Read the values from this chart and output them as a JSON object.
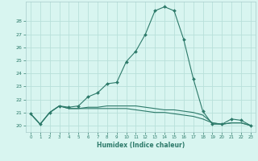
{
  "xlabel": "Humidex (Indice chaleur)",
  "bg_color": "#d8f5f0",
  "line_color": "#2d7a6a",
  "grid_color": "#b8e0da",
  "x_values": [
    0,
    1,
    2,
    3,
    4,
    5,
    6,
    7,
    8,
    9,
    10,
    11,
    12,
    13,
    14,
    15,
    16,
    17,
    18,
    19,
    20,
    21,
    22,
    23
  ],
  "line1": [
    20.9,
    20.1,
    21.0,
    21.5,
    21.4,
    21.5,
    22.2,
    22.5,
    23.2,
    23.3,
    24.9,
    25.7,
    27.0,
    28.8,
    29.1,
    28.8,
    26.6,
    23.6,
    21.1,
    20.1,
    20.1,
    20.5,
    20.4,
    20.0
  ],
  "line2": [
    20.9,
    20.1,
    21.0,
    21.5,
    21.3,
    21.3,
    21.4,
    21.4,
    21.5,
    21.5,
    21.5,
    21.5,
    21.4,
    21.3,
    21.2,
    21.2,
    21.1,
    21.0,
    20.8,
    20.2,
    20.1,
    20.2,
    20.2,
    20.0
  ],
  "line3": [
    20.9,
    20.1,
    21.0,
    21.5,
    21.3,
    21.3,
    21.3,
    21.3,
    21.3,
    21.3,
    21.3,
    21.2,
    21.1,
    21.0,
    21.0,
    20.9,
    20.8,
    20.7,
    20.5,
    20.2,
    20.1,
    20.2,
    20.2,
    20.0
  ],
  "ylim": [
    19.5,
    29.5
  ],
  "yticks": [
    20,
    21,
    22,
    23,
    24,
    25,
    26,
    27,
    28
  ],
  "figsize": [
    3.2,
    2.0
  ],
  "dpi": 100
}
